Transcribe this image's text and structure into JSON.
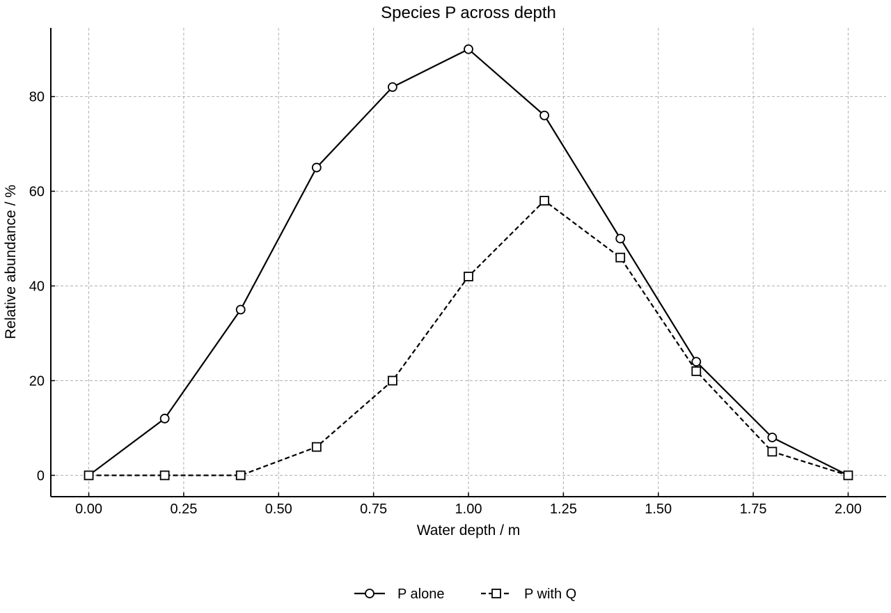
{
  "chart_data": {
    "type": "line",
    "title": "Species P across depth",
    "xlabel": "Water depth / m",
    "ylabel": "Relative abundance / %",
    "xlim": [
      -0.1,
      2.1
    ],
    "ylim": [
      -4.5,
      94.5
    ],
    "x_ticks": [
      "0.00",
      "0.25",
      "0.50",
      "0.75",
      "1.00",
      "1.25",
      "1.50",
      "1.75",
      "2.00"
    ],
    "y_ticks": [
      "0",
      "20",
      "40",
      "60",
      "80"
    ],
    "grid": true,
    "legend_position": "bottom-center",
    "x": [
      0.0,
      0.2,
      0.4,
      0.6,
      0.8,
      1.0,
      1.2,
      1.4,
      1.6,
      1.8,
      2.0
    ],
    "series": [
      {
        "name": "P alone",
        "values": [
          0,
          12,
          35,
          65,
          82,
          90,
          76,
          50,
          24,
          8,
          0
        ],
        "line_style": "solid",
        "marker": "circle",
        "color": "#000000"
      },
      {
        "name": "P with Q",
        "values": [
          0,
          0,
          0,
          6,
          20,
          42,
          58,
          46,
          22,
          5,
          0
        ],
        "line_style": "dashed",
        "marker": "square",
        "color": "#000000"
      }
    ]
  }
}
